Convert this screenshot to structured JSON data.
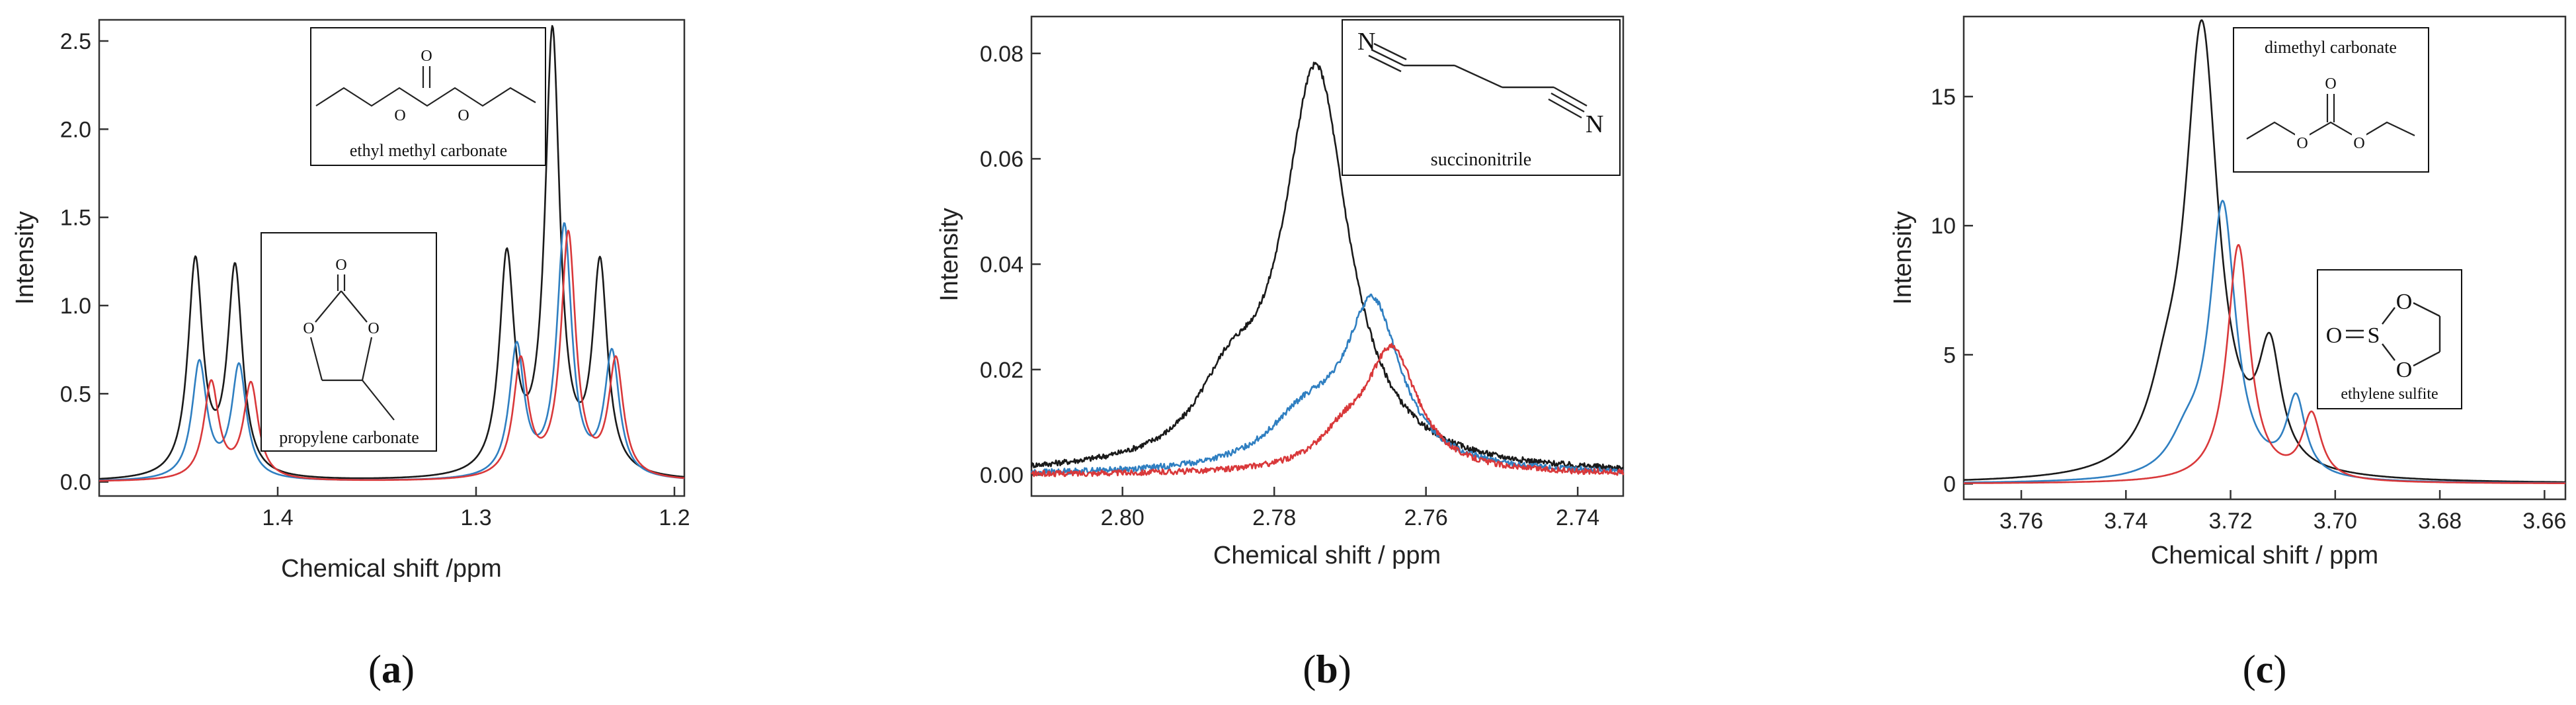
{
  "colors": {
    "black": "#1a1a1a",
    "blue": "#2f7fc1",
    "red": "#d9383a",
    "axis": "#222222",
    "frame": "#333333"
  },
  "chart_data": [
    {
      "type": "line",
      "panel": "a",
      "caption": {
        "open": "(",
        "letter": "a",
        "close": ")"
      },
      "title": "",
      "xlabel": "Chemical shift /ppm",
      "ylabel": "Intensity",
      "xlim": [
        1.49,
        1.195
      ],
      "ylim": [
        -0.08,
        2.62
      ],
      "xticks": [
        {
          "v": 1.4,
          "label": "1.4"
        },
        {
          "v": 1.3,
          "label": "1.3"
        },
        {
          "v": 1.2,
          "label": "1.2"
        }
      ],
      "yticks": [
        {
          "v": 0.0,
          "label": "0.0"
        },
        {
          "v": 0.5,
          "label": "0.5"
        },
        {
          "v": 1.0,
          "label": "1.0"
        },
        {
          "v": 1.5,
          "label": "1.5"
        },
        {
          "v": 2.0,
          "label": "2.0"
        },
        {
          "v": 2.5,
          "label": "2.5"
        }
      ],
      "series": [
        {
          "name": "black",
          "color": "#1a1a1a",
          "peaks": [
            [
              1.4415,
              1.22,
              0.0045
            ],
            [
              1.4215,
              1.18,
              0.0045
            ],
            [
              1.2845,
              1.22,
              0.0045
            ],
            [
              1.2615,
              2.5,
              0.0045
            ],
            [
              1.2375,
              1.18,
              0.0045
            ]
          ],
          "baseline": 0.0
        },
        {
          "name": "blue",
          "color": "#2f7fc1",
          "peaks": [
            [
              1.4395,
              0.66,
              0.0045
            ],
            [
              1.4195,
              0.64,
              0.0045
            ],
            [
              1.2795,
              0.74,
              0.0045
            ],
            [
              1.2555,
              1.42,
              0.0045
            ],
            [
              1.2315,
              0.7,
              0.0045
            ]
          ],
          "baseline": 0.0
        },
        {
          "name": "red",
          "color": "#d9383a",
          "peaks": [
            [
              1.4335,
              0.55,
              0.0045
            ],
            [
              1.4135,
              0.54,
              0.0045
            ],
            [
              1.2775,
              0.66,
              0.0045
            ],
            [
              1.2535,
              1.38,
              0.0045
            ],
            [
              1.2295,
              0.66,
              0.0045
            ]
          ],
          "baseline": 0.0
        }
      ],
      "molecules": [
        {
          "id": "emc",
          "name": "ethyl methyl carbonate"
        },
        {
          "id": "pc",
          "name": "propylene carbonate"
        }
      ]
    },
    {
      "type": "line",
      "panel": "b",
      "caption": {
        "open": "(",
        "letter": "b",
        "close": ")"
      },
      "title": "",
      "xlabel": "Chemical shift / ppm",
      "ylabel": "Intensity",
      "xlim": [
        2.812,
        2.734
      ],
      "ylim": [
        -0.004,
        0.087
      ],
      "xticks": [
        {
          "v": 2.8,
          "label": "2.80"
        },
        {
          "v": 2.78,
          "label": "2.78"
        },
        {
          "v": 2.76,
          "label": "2.76"
        },
        {
          "v": 2.74,
          "label": "2.74"
        }
      ],
      "yticks": [
        {
          "v": 0.0,
          "label": "0.00"
        },
        {
          "v": 0.02,
          "label": "0.02"
        },
        {
          "v": 0.04,
          "label": "0.04"
        },
        {
          "v": 0.06,
          "label": "0.06"
        },
        {
          "v": 0.08,
          "label": "0.08"
        }
      ],
      "series": [
        {
          "name": "black",
          "color": "#1a1a1a",
          "peaks": [
            [
              2.7745,
              0.076,
              0.0052
            ],
            [
              2.786,
              0.012,
              0.005
            ]
          ],
          "baseline": 0.0
        },
        {
          "name": "blue",
          "color": "#2f7fc1",
          "peaks": [
            [
              2.767,
              0.031,
              0.0045
            ],
            [
              2.776,
              0.009,
              0.006
            ]
          ],
          "baseline": 0.0
        },
        {
          "name": "red",
          "color": "#d9383a",
          "peaks": [
            [
              2.7645,
              0.023,
              0.0042
            ],
            [
              2.771,
              0.005,
              0.004
            ]
          ],
          "baseline": 0.0
        }
      ],
      "molecules": [
        {
          "id": "sn",
          "name": "succinonitrile",
          "atom_left": "N",
          "atom_right": "N"
        }
      ]
    },
    {
      "type": "line",
      "panel": "c",
      "caption": {
        "open": "(",
        "letter": "c",
        "close": ")"
      },
      "title": "",
      "xlabel": "Chemical shift / ppm",
      "ylabel": "Intensity",
      "xlim": [
        3.771,
        3.656
      ],
      "ylim": [
        -0.6,
        18.1
      ],
      "xticks": [
        {
          "v": 3.76,
          "label": "3.76"
        },
        {
          "v": 3.74,
          "label": "3.74"
        },
        {
          "v": 3.72,
          "label": "3.72"
        },
        {
          "v": 3.7,
          "label": "3.70"
        },
        {
          "v": 3.68,
          "label": "3.68"
        },
        {
          "v": 3.66,
          "label": "3.66"
        }
      ],
      "yticks": [
        {
          "v": 0,
          "label": "0"
        },
        {
          "v": 5,
          "label": "5"
        },
        {
          "v": 10,
          "label": "10"
        },
        {
          "v": 15,
          "label": "15"
        }
      ],
      "series": [
        {
          "name": "black",
          "color": "#1a1a1a",
          "peaks": [
            [
              3.7255,
              17.3,
              0.0038
            ],
            [
              3.7125,
              4.4,
              0.0026
            ],
            [
              3.7325,
              2.0,
              0.004
            ]
          ],
          "baseline": 0.0
        },
        {
          "name": "blue",
          "color": "#2f7fc1",
          "peaks": [
            [
              3.7215,
              10.6,
              0.003
            ],
            [
              3.7075,
              3.0,
              0.0022
            ],
            [
              3.7285,
              1.2,
              0.004
            ]
          ],
          "baseline": 0.0
        },
        {
          "name": "red",
          "color": "#d9383a",
          "peaks": [
            [
              3.7185,
              9.2,
              0.0026
            ],
            [
              3.7045,
              2.5,
              0.0022
            ]
          ],
          "baseline": 0.0
        }
      ],
      "molecules": [
        {
          "id": "dmc",
          "name": "dimethyl carbonate"
        },
        {
          "id": "es",
          "name": "ethylene sulfite",
          "atom_s": "S",
          "atom_o1": "O",
          "atom_o2": "O",
          "atom_o3": "O"
        }
      ]
    }
  ]
}
